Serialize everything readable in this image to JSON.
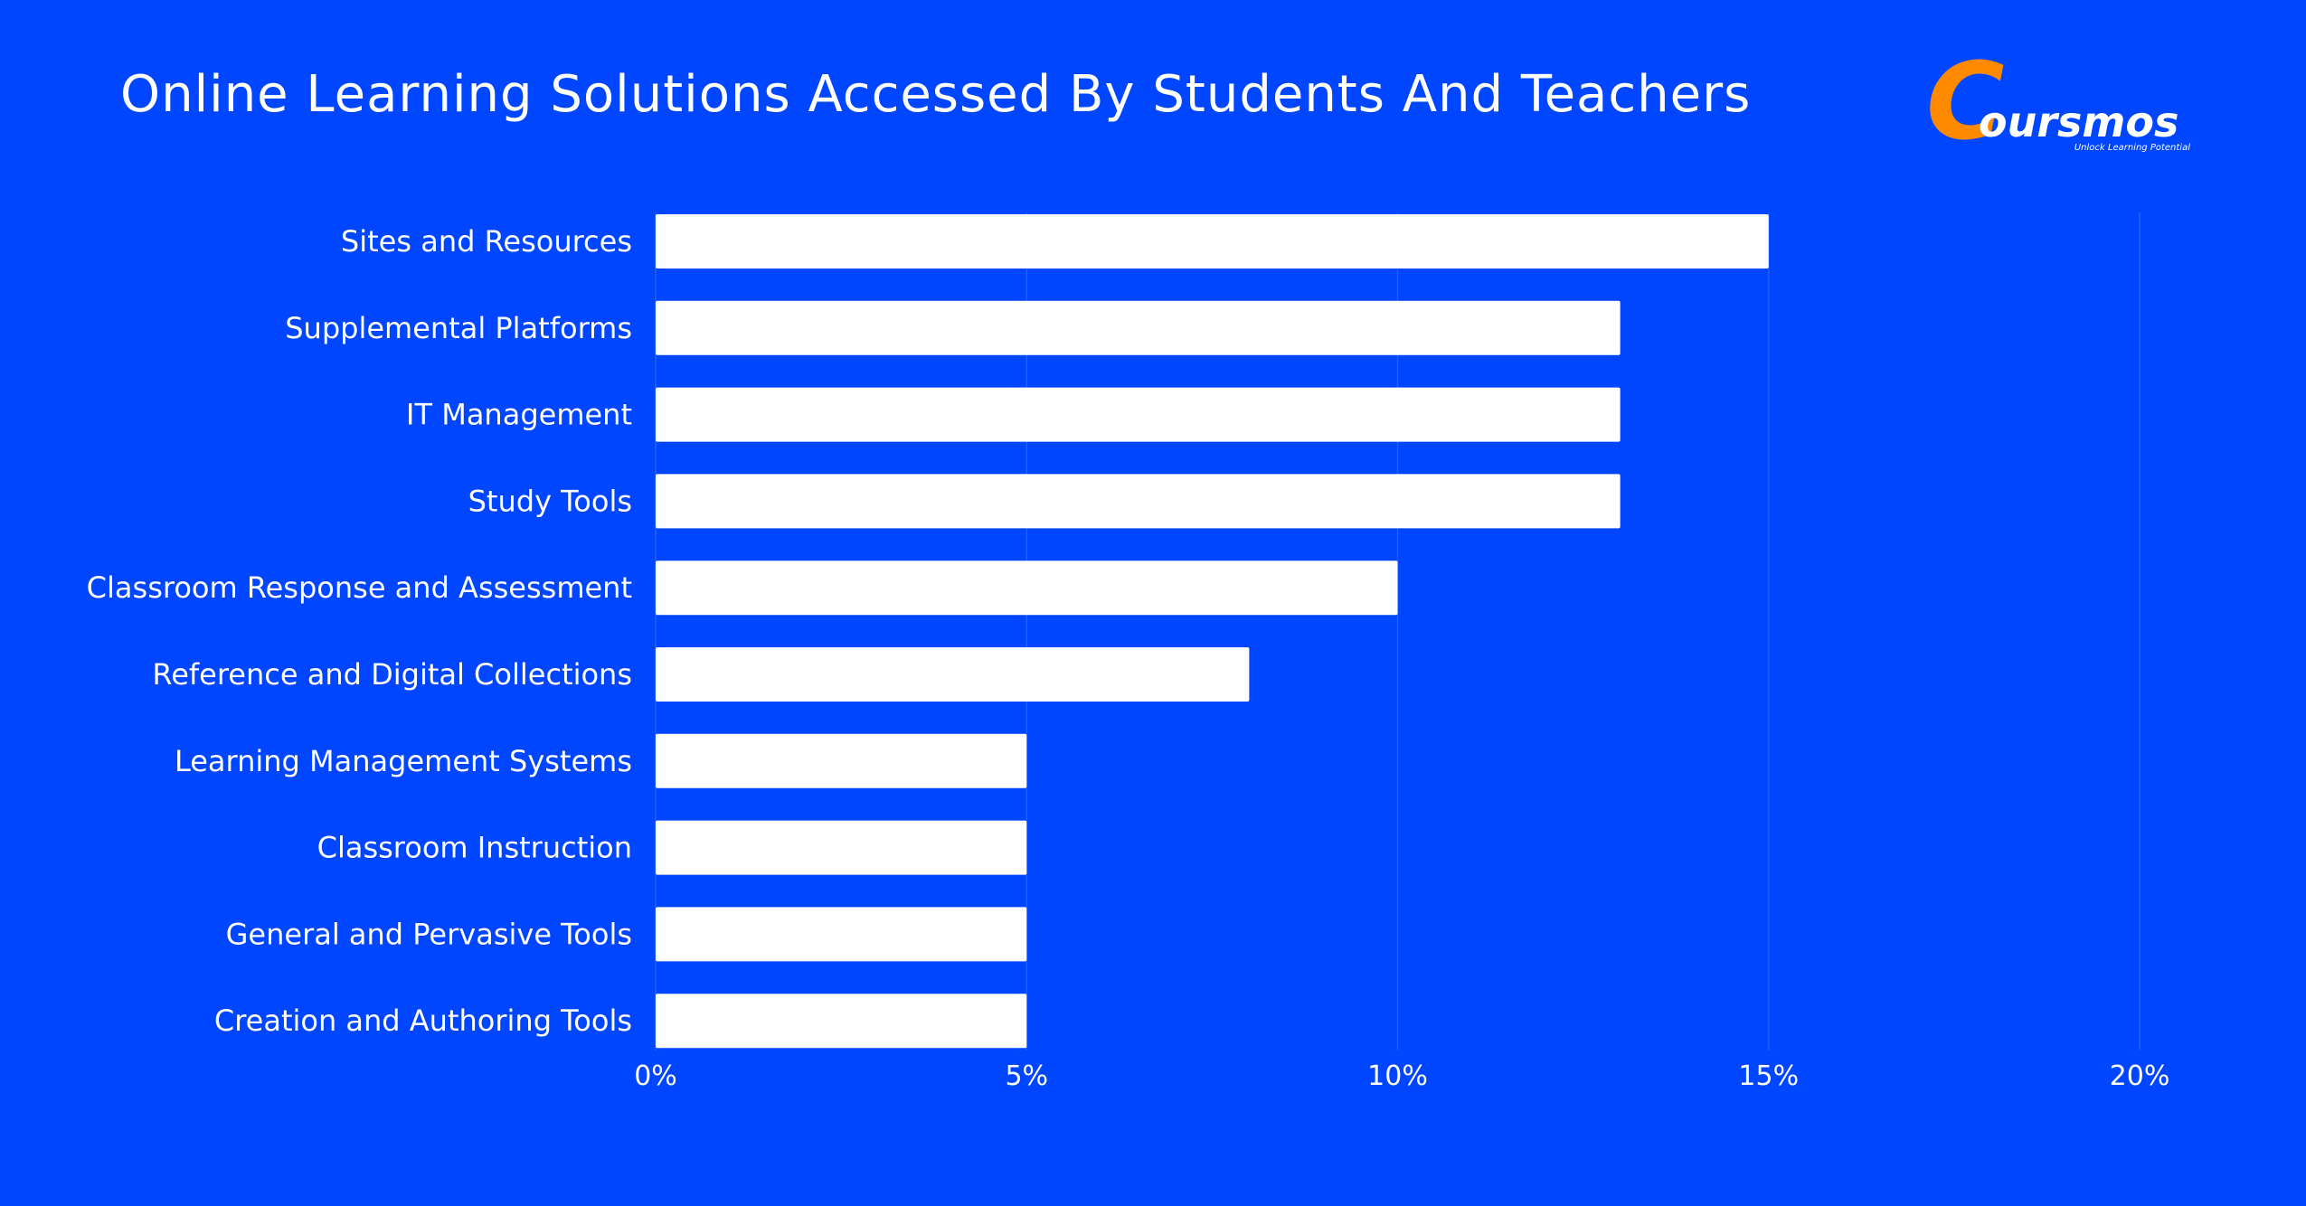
{
  "brand": {
    "name": "oursmos",
    "initial": "C",
    "tagline": "Unlock Learning Potential",
    "accent_color": "#FF8A00",
    "background_color": "#0046FF",
    "bar_color": "#FFFFFF"
  },
  "chart_data": {
    "type": "bar",
    "orientation": "horizontal",
    "title": "Online Learning Solutions Accessed By Students And Teachers",
    "xlabel": "",
    "ylabel": "",
    "categories": [
      "Sites and Resources",
      "Supplemental Platforms",
      "IT Management",
      "Study Tools",
      "Classroom Response and Assessment",
      "Reference and Digital Collections",
      "Learning Management Systems",
      "Classroom Instruction",
      "General and Pervasive Tools",
      "Creation and Authoring Tools"
    ],
    "values": [
      15,
      13,
      13,
      13,
      10,
      8,
      5,
      5,
      5,
      5
    ],
    "unit": "%",
    "xlim": [
      0,
      20
    ],
    "ticks": [
      0,
      5,
      10,
      15,
      20
    ],
    "tick_labels": [
      "0%",
      "5%",
      "10%",
      "15%",
      "20%"
    ],
    "grid": true,
    "legend": "none"
  }
}
